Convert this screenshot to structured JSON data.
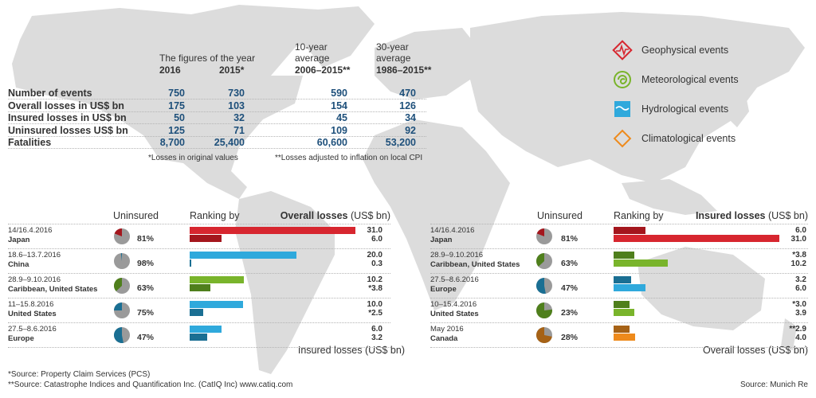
{
  "table": {
    "header_group": "The figures of the year",
    "columns": [
      {
        "year": "2016"
      },
      {
        "year": "2015*"
      },
      {
        "line1": "10-year",
        "line2": "average",
        "year": "2006–2015**"
      },
      {
        "line1": "30-year",
        "line2": "average",
        "year": "1986–2015**"
      }
    ],
    "rows": [
      {
        "label": "Number of events",
        "values": [
          "750",
          "730",
          "590",
          "470"
        ]
      },
      {
        "label": "Overall losses in US$ bn",
        "values": [
          "175",
          "103",
          "154",
          "126"
        ]
      },
      {
        "label": "Insured losses in US$ bn",
        "values": [
          "50",
          "32",
          "45",
          "34"
        ]
      },
      {
        "label": "Uninsured losses US$ bn",
        "values": [
          "125",
          "71",
          "109",
          "92"
        ]
      },
      {
        "label": "Fatalities",
        "values": [
          "8,700",
          "25,400",
          "60,600",
          "53,200"
        ]
      }
    ],
    "note1": "*Losses in original values",
    "note2": "**Losses adjusted to inflation on local CPI"
  },
  "legend": [
    {
      "label": "Geophysical events",
      "icon": "geophysical-icon",
      "color": "#d7262f"
    },
    {
      "label": "Meteorological events",
      "icon": "meteorological-icon",
      "color": "#79b42b"
    },
    {
      "label": "Hydrological events",
      "icon": "hydrological-icon",
      "color": "#2fa9dc"
    },
    {
      "label": "Climatological events",
      "icon": "climatological-icon",
      "color": "#ee8a1c"
    }
  ],
  "chart_data": [
    {
      "type": "bar",
      "title": "Ranking by Overall losses (US$ bn)",
      "col_uninsured": "Uninsured",
      "col_ranking": "Ranking by",
      "col_metric": "Overall losses",
      "col_unit": "(US$ bn)",
      "footer_metric": "Insured losses",
      "footer_unit": "(US$ bn)",
      "max": 31.0,
      "events": [
        {
          "date": "14/16.4.2016",
          "country": "Japan",
          "uninsured_pct": 81,
          "uninsured_label": "81%",
          "primary": 31.0,
          "primary_label": "31.0",
          "secondary": 6.0,
          "secondary_label": "6.0",
          "color": "#d7262f",
          "dark": "#a4161d"
        },
        {
          "date": "18.6–13.7.2016",
          "country": "China",
          "uninsured_pct": 98,
          "uninsured_label": "98%",
          "primary": 20.0,
          "primary_label": "20.0",
          "secondary": 0.3,
          "secondary_label": "0.3",
          "color": "#2fa9dc",
          "dark": "#1a6f93"
        },
        {
          "date": "28.9–9.10.2016",
          "country": "Caribbean, United States",
          "uninsured_pct": 63,
          "uninsured_label": "63%",
          "primary": 10.2,
          "primary_label": "10.2",
          "secondary": 3.8,
          "secondary_label": "*3.8",
          "color": "#79b42b",
          "dark": "#4f7f1c"
        },
        {
          "date": "11–15.8.2016",
          "country": "United States",
          "uninsured_pct": 75,
          "uninsured_label": "75%",
          "primary": 10.0,
          "primary_label": "10.0",
          "secondary": 2.5,
          "secondary_label": "*2.5",
          "color": "#2fa9dc",
          "dark": "#1a6f93"
        },
        {
          "date": "27.5–8.6.2016",
          "country": "Europe",
          "uninsured_pct": 47,
          "uninsured_label": "47%",
          "primary": 6.0,
          "primary_label": "6.0",
          "secondary": 3.2,
          "secondary_label": "3.2",
          "color": "#2fa9dc",
          "dark": "#1a6f93"
        }
      ]
    },
    {
      "type": "bar",
      "title": "Ranking by Insured losses (US$ bn)",
      "col_uninsured": "Uninsured",
      "col_ranking": "Ranking by",
      "col_metric": "Insured losses",
      "col_unit": "(US$ bn)",
      "footer_metric": "Overall losses",
      "footer_unit": "(US$ bn)",
      "max": 31.0,
      "events": [
        {
          "date": "14/16.4.2016",
          "country": "Japan",
          "uninsured_pct": 81,
          "uninsured_label": "81%",
          "primary": 6.0,
          "primary_label": "6.0",
          "secondary": 31.0,
          "secondary_label": "31.0",
          "color": "#d7262f",
          "dark": "#a4161d"
        },
        {
          "date": "28.9–9.10.2016",
          "country": "Caribbean, United States",
          "uninsured_pct": 63,
          "uninsured_label": "63%",
          "primary": 3.8,
          "primary_label": "*3.8",
          "secondary": 10.2,
          "secondary_label": "10.2",
          "color": "#79b42b",
          "dark": "#4f7f1c"
        },
        {
          "date": "27.5–8.6.2016",
          "country": "Europe",
          "uninsured_pct": 47,
          "uninsured_label": "47%",
          "primary": 3.2,
          "primary_label": "3.2",
          "secondary": 6.0,
          "secondary_label": "6.0",
          "color": "#2fa9dc",
          "dark": "#1a6f93"
        },
        {
          "date": "10–15.4.2016",
          "country": "United States",
          "uninsured_pct": 23,
          "uninsured_label": "23%",
          "primary": 3.0,
          "primary_label": "*3.0",
          "secondary": 3.9,
          "secondary_label": "3.9",
          "color": "#79b42b",
          "dark": "#4f7f1c"
        },
        {
          "date": "May 2016",
          "country": "Canada",
          "uninsured_pct": 28,
          "uninsured_label": "28%",
          "primary": 2.9,
          "primary_label": "**2.9",
          "secondary": 4.0,
          "secondary_label": "4.0",
          "color": "#ee8a1c",
          "dark": "#a66216"
        }
      ]
    }
  ],
  "footer": {
    "source1": "*Source: Property Claim Services (PCS)",
    "source2": "**Source: Catastrophe Indices and Quantification Inc. (CatIQ Inc) www.catiq.com",
    "source3": "Source: Munich Re"
  }
}
